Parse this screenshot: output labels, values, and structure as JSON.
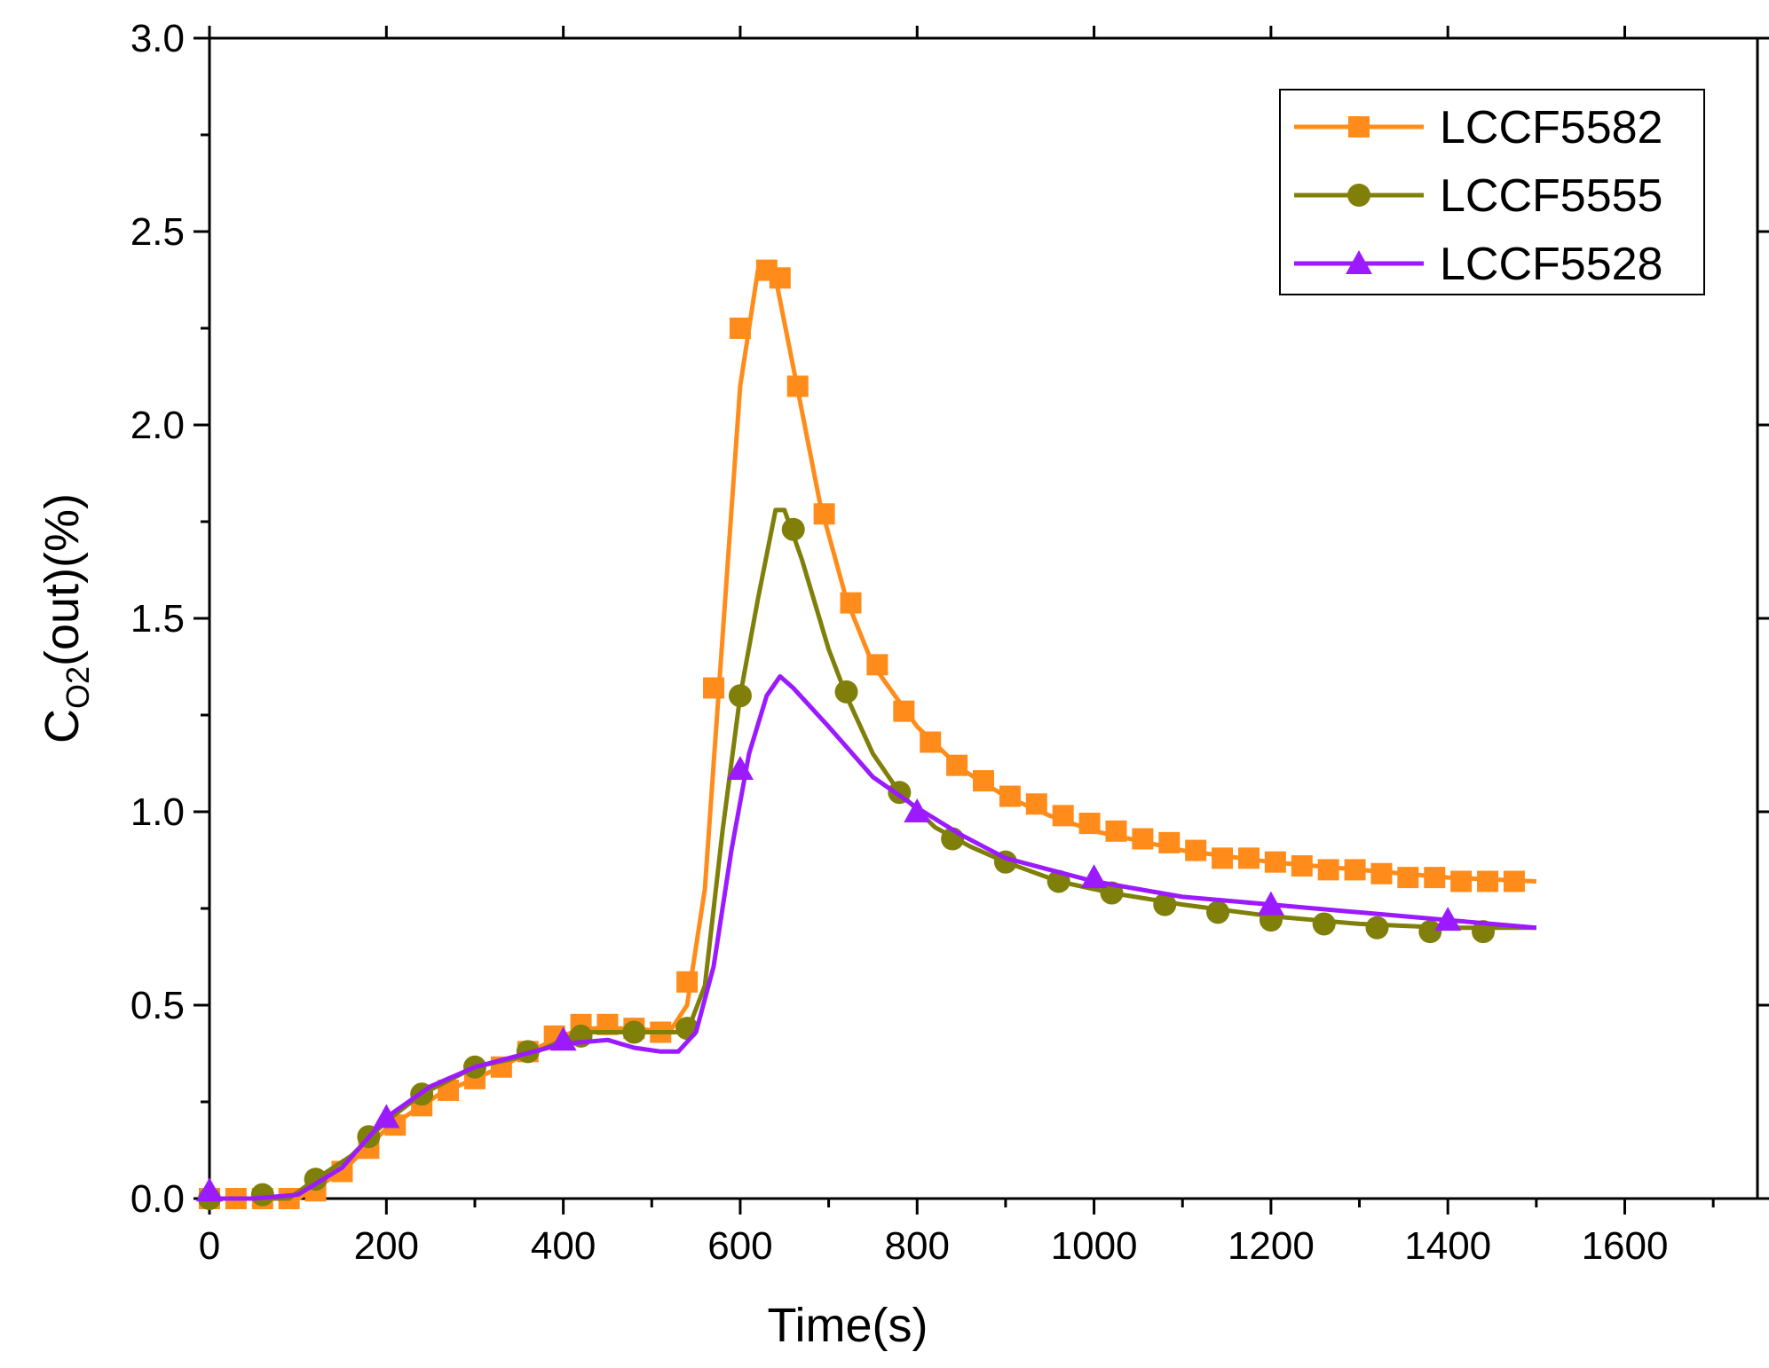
{
  "chart_data": {
    "type": "line",
    "xlabel": "Time(s)",
    "ylabel": {
      "main": "C",
      "subscript": "O2",
      "suffix": "(out)(%)"
    },
    "xlim": [
      0,
      1750
    ],
    "ylim": [
      0,
      3.0
    ],
    "xticks": [
      0,
      200,
      400,
      600,
      800,
      1000,
      1200,
      1400,
      1600
    ],
    "xtick_labels": [
      "0",
      "200",
      "400",
      "600",
      "800",
      "1000",
      "1200",
      "1400",
      "1600"
    ],
    "yticks": [
      0,
      0.5,
      1.0,
      1.5,
      2.0,
      2.5,
      3.0
    ],
    "ytick_labels": [
      "0.0",
      "0.5",
      "1.0",
      "1.5",
      "2.0",
      "2.5",
      "3.0"
    ],
    "grid": false,
    "legend": {
      "placement": "top-right"
    },
    "series": [
      {
        "name": "LCCF5582",
        "color": "#ff8c1a",
        "marker": "square",
        "line": [
          [
            0,
            0.0
          ],
          [
            100,
            0.0
          ],
          [
            150,
            0.07
          ],
          [
            200,
            0.18
          ],
          [
            260,
            0.27
          ],
          [
            320,
            0.33
          ],
          [
            380,
            0.4
          ],
          [
            420,
            0.44
          ],
          [
            480,
            0.44
          ],
          [
            520,
            0.43
          ],
          [
            540,
            0.5
          ],
          [
            560,
            0.8
          ],
          [
            580,
            1.45
          ],
          [
            600,
            2.1
          ],
          [
            620,
            2.4
          ],
          [
            640,
            2.38
          ],
          [
            660,
            2.15
          ],
          [
            690,
            1.8
          ],
          [
            720,
            1.55
          ],
          [
            750,
            1.38
          ],
          [
            800,
            1.22
          ],
          [
            850,
            1.11
          ],
          [
            900,
            1.04
          ],
          [
            950,
            0.99
          ],
          [
            1000,
            0.95
          ],
          [
            1100,
            0.9
          ],
          [
            1200,
            0.87
          ],
          [
            1300,
            0.85
          ],
          [
            1400,
            0.83
          ],
          [
            1500,
            0.82
          ]
        ],
        "points": [
          [
            0,
            0.0
          ],
          [
            30,
            0.0
          ],
          [
            60,
            0.0
          ],
          [
            90,
            0.0
          ],
          [
            120,
            0.02
          ],
          [
            150,
            0.07
          ],
          [
            180,
            0.13
          ],
          [
            210,
            0.19
          ],
          [
            240,
            0.24
          ],
          [
            270,
            0.28
          ],
          [
            300,
            0.31
          ],
          [
            330,
            0.34
          ],
          [
            360,
            0.38
          ],
          [
            390,
            0.42
          ],
          [
            420,
            0.45
          ],
          [
            450,
            0.45
          ],
          [
            480,
            0.44
          ],
          [
            510,
            0.43
          ],
          [
            540,
            0.56
          ],
          [
            570,
            1.32
          ],
          [
            600,
            2.25
          ],
          [
            630,
            2.4
          ],
          [
            645,
            2.38
          ],
          [
            665,
            2.1
          ],
          [
            695,
            1.77
          ],
          [
            725,
            1.54
          ],
          [
            755,
            1.38
          ],
          [
            785,
            1.26
          ],
          [
            815,
            1.18
          ],
          [
            845,
            1.12
          ],
          [
            875,
            1.08
          ],
          [
            905,
            1.04
          ],
          [
            935,
            1.02
          ],
          [
            965,
            0.99
          ],
          [
            995,
            0.97
          ],
          [
            1025,
            0.95
          ],
          [
            1055,
            0.93
          ],
          [
            1085,
            0.92
          ],
          [
            1115,
            0.9
          ],
          [
            1145,
            0.88
          ],
          [
            1175,
            0.88
          ],
          [
            1205,
            0.87
          ],
          [
            1235,
            0.86
          ],
          [
            1265,
            0.85
          ],
          [
            1295,
            0.85
          ],
          [
            1325,
            0.84
          ],
          [
            1355,
            0.83
          ],
          [
            1385,
            0.83
          ],
          [
            1415,
            0.82
          ],
          [
            1445,
            0.82
          ],
          [
            1475,
            0.82
          ]
        ]
      },
      {
        "name": "LCCF5555",
        "color": "#7f7f0a",
        "marker": "circle",
        "line": [
          [
            0,
            0.0
          ],
          [
            90,
            0.0
          ],
          [
            120,
            0.05
          ],
          [
            160,
            0.11
          ],
          [
            200,
            0.2
          ],
          [
            240,
            0.27
          ],
          [
            300,
            0.34
          ],
          [
            360,
            0.37
          ],
          [
            420,
            0.43
          ],
          [
            480,
            0.43
          ],
          [
            540,
            0.43
          ],
          [
            560,
            0.55
          ],
          [
            580,
            0.95
          ],
          [
            600,
            1.3
          ],
          [
            620,
            1.55
          ],
          [
            640,
            1.78
          ],
          [
            650,
            1.78
          ],
          [
            670,
            1.65
          ],
          [
            700,
            1.42
          ],
          [
            720,
            1.3
          ],
          [
            750,
            1.15
          ],
          [
            780,
            1.05
          ],
          [
            820,
            0.96
          ],
          [
            860,
            0.91
          ],
          [
            900,
            0.87
          ],
          [
            960,
            0.82
          ],
          [
            1020,
            0.79
          ],
          [
            1100,
            0.76
          ],
          [
            1200,
            0.73
          ],
          [
            1300,
            0.71
          ],
          [
            1400,
            0.7
          ],
          [
            1500,
            0.7
          ]
        ],
        "points": [
          [
            0,
            0.0
          ],
          [
            60,
            0.01
          ],
          [
            120,
            0.05
          ],
          [
            180,
            0.16
          ],
          [
            240,
            0.27
          ],
          [
            300,
            0.34
          ],
          [
            360,
            0.38
          ],
          [
            420,
            0.42
          ],
          [
            480,
            0.43
          ],
          [
            540,
            0.44
          ],
          [
            600,
            1.3
          ],
          [
            660,
            1.73
          ],
          [
            720,
            1.31
          ],
          [
            780,
            1.05
          ],
          [
            840,
            0.93
          ],
          [
            900,
            0.87
          ],
          [
            960,
            0.82
          ],
          [
            1020,
            0.79
          ],
          [
            1080,
            0.76
          ],
          [
            1140,
            0.74
          ],
          [
            1200,
            0.72
          ],
          [
            1260,
            0.71
          ],
          [
            1320,
            0.7
          ],
          [
            1380,
            0.69
          ],
          [
            1440,
            0.69
          ]
        ]
      },
      {
        "name": "LCCF5528",
        "color": "#9b1aff",
        "marker": "triangle",
        "line": [
          [
            0,
            0.0
          ],
          [
            50,
            0.0
          ],
          [
            100,
            0.01
          ],
          [
            150,
            0.08
          ],
          [
            200,
            0.21
          ],
          [
            250,
            0.29
          ],
          [
            300,
            0.34
          ],
          [
            350,
            0.37
          ],
          [
            400,
            0.4
          ],
          [
            450,
            0.41
          ],
          [
            480,
            0.39
          ],
          [
            510,
            0.38
          ],
          [
            530,
            0.38
          ],
          [
            550,
            0.43
          ],
          [
            570,
            0.6
          ],
          [
            590,
            0.9
          ],
          [
            610,
            1.15
          ],
          [
            630,
            1.3
          ],
          [
            645,
            1.35
          ],
          [
            660,
            1.32
          ],
          [
            700,
            1.22
          ],
          [
            750,
            1.09
          ],
          [
            800,
            1.01
          ],
          [
            850,
            0.94
          ],
          [
            900,
            0.88
          ],
          [
            950,
            0.85
          ],
          [
            1000,
            0.82
          ],
          [
            1100,
            0.78
          ],
          [
            1200,
            0.76
          ],
          [
            1300,
            0.74
          ],
          [
            1400,
            0.72
          ],
          [
            1500,
            0.7
          ]
        ],
        "points": [
          [
            0,
            0.02
          ],
          [
            200,
            0.21
          ],
          [
            400,
            0.41
          ],
          [
            600,
            1.11
          ],
          [
            800,
            1.0
          ],
          [
            1000,
            0.83
          ],
          [
            1200,
            0.76
          ],
          [
            1400,
            0.72
          ]
        ]
      }
    ]
  }
}
